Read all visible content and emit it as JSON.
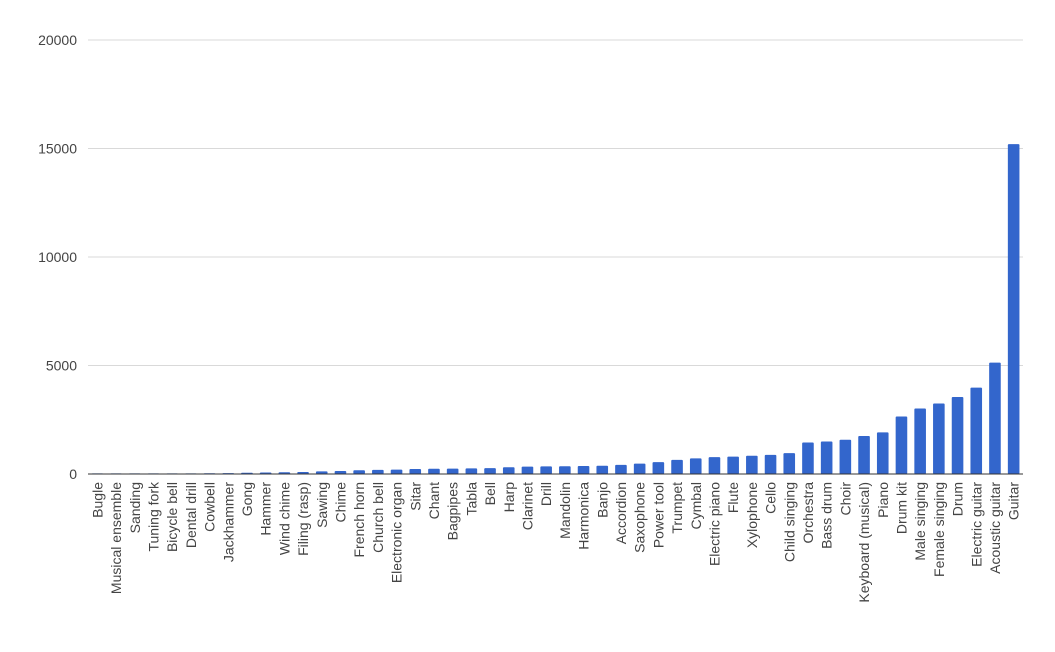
{
  "chart_data": {
    "type": "bar",
    "title": "",
    "xlabel": "",
    "ylabel": "",
    "ylim": [
      0,
      20000
    ],
    "yticks": [
      0,
      5000,
      10000,
      15000,
      20000
    ],
    "grid": true,
    "legend": "none",
    "bar_color": "#3366cc",
    "categories": [
      "Bugle",
      "Musical ensemble",
      "Sanding",
      "Tuning fork",
      "Bicycle bell",
      "Dental drill",
      "Cowbell",
      "Jackhammer",
      "Gong",
      "Hammer",
      "Wind chime",
      "Filing (rasp)",
      "Sawing",
      "Chime",
      "French horn",
      "Church bell",
      "Electronic organ",
      "Sitar",
      "Chant",
      "Bagpipes",
      "Tabla",
      "Bell",
      "Harp",
      "Clarinet",
      "Drill",
      "Mandolin",
      "Harmonica",
      "Banjo",
      "Accordion",
      "Saxophone",
      "Power tool",
      "Trumpet",
      "Cymbal",
      "Electric piano",
      "Flute",
      "Xylophone",
      "Cello",
      "Child singing",
      "Orchestra",
      "Bass drum",
      "Choir",
      "Keyboard (musical)",
      "Piano",
      "Drum kit",
      "Male singing",
      "Female singing",
      "Drum",
      "Electric guitar",
      "Acoustic guitar",
      "Guitar"
    ],
    "values": [
      5,
      10,
      15,
      20,
      25,
      30,
      35,
      40,
      60,
      70,
      80,
      90,
      120,
      140,
      170,
      190,
      200,
      230,
      240,
      250,
      260,
      270,
      310,
      340,
      350,
      360,
      370,
      380,
      420,
      480,
      550,
      650,
      720,
      780,
      800,
      840,
      880,
      960,
      1450,
      1500,
      1580,
      1750,
      1920,
      2650,
      3020,
      3250,
      3550,
      3980,
      5130,
      15200
    ]
  }
}
